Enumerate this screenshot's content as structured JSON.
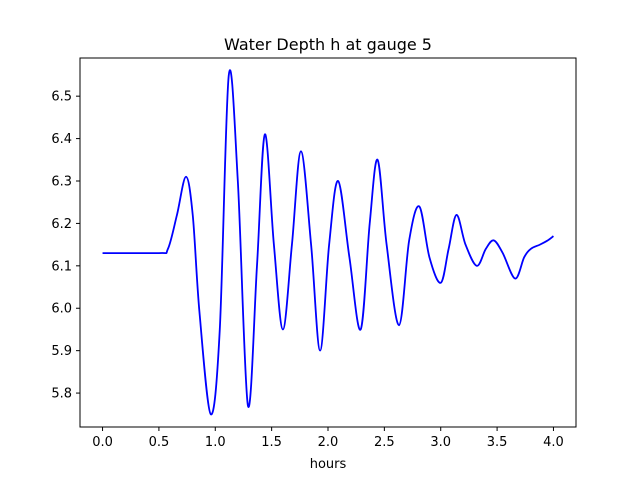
{
  "chart_data": {
    "type": "line",
    "title": "Water Depth h at gauge 5",
    "xlabel": "hours",
    "ylabel": "",
    "xlim": [
      -0.2,
      4.2
    ],
    "ylim": [
      5.72,
      6.59
    ],
    "xticks": [
      0.0,
      0.5,
      1.0,
      1.5,
      2.0,
      2.5,
      3.0,
      3.5,
      4.0
    ],
    "xtick_labels": [
      "0.0",
      "0.5",
      "1.0",
      "1.5",
      "2.0",
      "2.5",
      "3.0",
      "3.5",
      "4.0"
    ],
    "yticks": [
      5.8,
      5.9,
      6.0,
      6.1,
      6.2,
      6.3,
      6.4,
      6.5
    ],
    "ytick_labels": [
      "5.8",
      "5.9",
      "6.0",
      "6.1",
      "6.2",
      "6.3",
      "6.4",
      "6.5"
    ],
    "grid": false,
    "series": [
      {
        "color": "#0000ff",
        "x": [
          0.0,
          0.5,
          0.58,
          0.66,
          0.74,
          0.8,
          0.86,
          0.96,
          1.04,
          1.12,
          1.2,
          1.29,
          1.37,
          1.44,
          1.52,
          1.6,
          1.68,
          1.76,
          1.85,
          1.93,
          2.01,
          2.09,
          2.19,
          2.29,
          2.37,
          2.44,
          2.52,
          2.63,
          2.72,
          2.81,
          2.9,
          3.0,
          3.07,
          3.14,
          3.22,
          3.32,
          3.4,
          3.47,
          3.55,
          3.66,
          3.74,
          3.8,
          3.88,
          3.95,
          4.0
        ],
        "y": [
          6.13,
          6.13,
          6.14,
          6.22,
          6.31,
          6.22,
          5.99,
          5.75,
          5.95,
          6.55,
          6.3,
          5.77,
          6.1,
          6.41,
          6.15,
          5.95,
          6.15,
          6.37,
          6.15,
          5.9,
          6.15,
          6.3,
          6.12,
          5.95,
          6.2,
          6.35,
          6.15,
          5.96,
          6.16,
          6.24,
          6.12,
          6.06,
          6.14,
          6.22,
          6.15,
          6.1,
          6.14,
          6.16,
          6.13,
          6.07,
          6.12,
          6.14,
          6.15,
          6.16,
          6.17
        ]
      }
    ]
  }
}
